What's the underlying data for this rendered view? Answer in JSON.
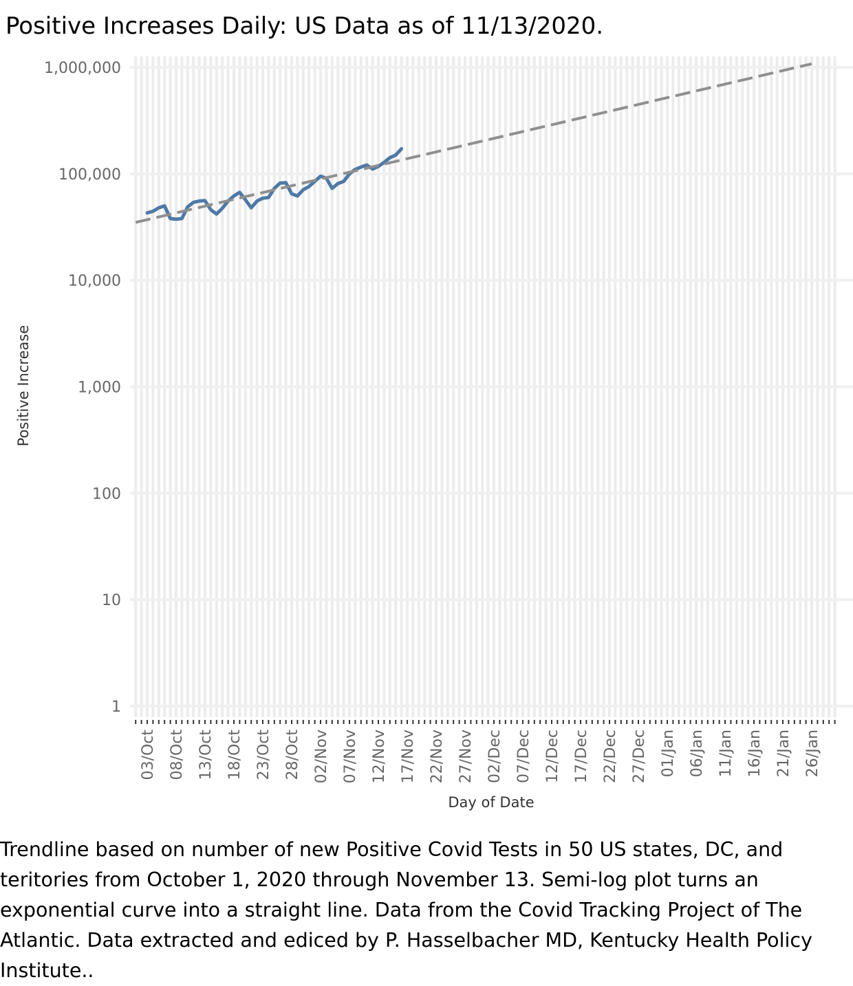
{
  "title": "Positive Increases Daily: US Data as of 11/13/2020.",
  "caption": "Trendline based on number of new Positive Covid Tests  in 50 US states, DC, and teritories from October 1, 2020 through November 13.  Semi-log plot turns an exponential curve into a straight line. Data from the Covid Tracking Project of The Atlantic. Data extracted and ediced by P. Hasselbacher MD, Kentucky Health Policy Institute..",
  "chart_data": {
    "type": "line",
    "title": "Positive Increases Daily: US Data as of 11/13/2020.",
    "xlabel": "Day of Date",
    "ylabel": "Positive Increase",
    "y_scale": "log",
    "ylim": [
      1,
      1000000
    ],
    "xlim": [
      "2020-10-01",
      "2021-01-30"
    ],
    "grid": true,
    "y_ticks": [
      {
        "value": 1,
        "label": "1"
      },
      {
        "value": 10,
        "label": "10"
      },
      {
        "value": 100,
        "label": "100"
      },
      {
        "value": 1000,
        "label": "1,000"
      },
      {
        "value": 10000,
        "label": "10,000"
      },
      {
        "value": 100000,
        "label": "100,000"
      },
      {
        "value": 1000000,
        "label": "1,000,000"
      }
    ],
    "x_ticks": [
      {
        "date": "2020-10-03",
        "label": "03/Oct"
      },
      {
        "date": "2020-10-08",
        "label": "08/Oct"
      },
      {
        "date": "2020-10-13",
        "label": "13/Oct"
      },
      {
        "date": "2020-10-18",
        "label": "18/Oct"
      },
      {
        "date": "2020-10-23",
        "label": "23/Oct"
      },
      {
        "date": "2020-10-28",
        "label": "28/Oct"
      },
      {
        "date": "2020-11-02",
        "label": "02/Nov"
      },
      {
        "date": "2020-11-07",
        "label": "07/Nov"
      },
      {
        "date": "2020-11-12",
        "label": "12/Nov"
      },
      {
        "date": "2020-11-17",
        "label": "17/Nov"
      },
      {
        "date": "2020-11-22",
        "label": "22/Nov"
      },
      {
        "date": "2020-11-27",
        "label": "27/Nov"
      },
      {
        "date": "2020-12-02",
        "label": "02/Dec"
      },
      {
        "date": "2020-12-07",
        "label": "07/Dec"
      },
      {
        "date": "2020-12-12",
        "label": "12/Dec"
      },
      {
        "date": "2020-12-17",
        "label": "17/Dec"
      },
      {
        "date": "2020-12-22",
        "label": "22/Dec"
      },
      {
        "date": "2020-12-27",
        "label": "27/Dec"
      },
      {
        "date": "2021-01-01",
        "label": "01/Jan"
      },
      {
        "date": "2021-01-06",
        "label": "06/Jan"
      },
      {
        "date": "2021-01-11",
        "label": "11/Jan"
      },
      {
        "date": "2021-01-16",
        "label": "16/Jan"
      },
      {
        "date": "2021-01-21",
        "label": "21/Jan"
      },
      {
        "date": "2021-01-26",
        "label": "26/Jan"
      }
    ],
    "series": [
      {
        "color": "#4e79a7",
        "style": "solid",
        "x": [
          "2020-10-03",
          "2020-10-04",
          "2020-10-05",
          "2020-10-06",
          "2020-10-07",
          "2020-10-08",
          "2020-10-09",
          "2020-10-10",
          "2020-10-11",
          "2020-10-12",
          "2020-10-13",
          "2020-10-14",
          "2020-10-15",
          "2020-10-16",
          "2020-10-17",
          "2020-10-18",
          "2020-10-19",
          "2020-10-20",
          "2020-10-21",
          "2020-10-22",
          "2020-10-23",
          "2020-10-24",
          "2020-10-25",
          "2020-10-26",
          "2020-10-27",
          "2020-10-28",
          "2020-10-29",
          "2020-10-30",
          "2020-10-31",
          "2020-11-01",
          "2020-11-02",
          "2020-11-03",
          "2020-11-04",
          "2020-11-05",
          "2020-11-06",
          "2020-11-07",
          "2020-11-08",
          "2020-11-09",
          "2020-11-10",
          "2020-11-11",
          "2020-11-12",
          "2020-11-13",
          "2020-11-14",
          "2020-11-15",
          "2020-11-16"
        ],
        "y": [
          43000,
          44500,
          48000,
          50000,
          38000,
          37500,
          38000,
          49000,
          54000,
          55500,
          56000,
          46000,
          42000,
          47500,
          55500,
          62000,
          67000,
          57000,
          48000,
          55500,
          59000,
          60000,
          73000,
          82000,
          82500,
          65000,
          62000,
          71000,
          76000,
          85000,
          95000,
          91000,
          73000,
          81000,
          85000,
          100000,
          110000,
          116000,
          121000,
          111000,
          117500,
          128000,
          142000,
          150000,
          172000
        ]
      },
      {
        "color": "#8f8f8f",
        "style": "dashed",
        "x": [
          "2020-10-01",
          "2021-01-26"
        ],
        "y": [
          35000,
          1080000
        ]
      }
    ]
  }
}
